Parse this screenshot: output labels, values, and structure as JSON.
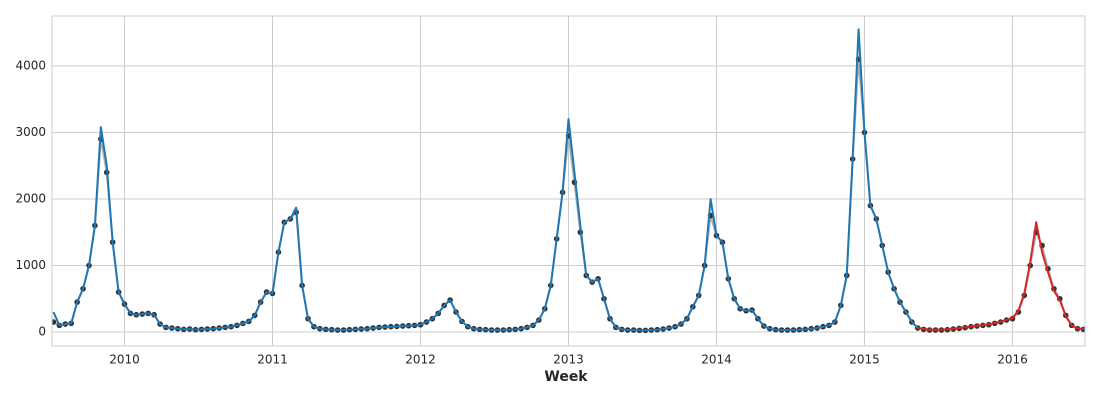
{
  "chart_data": {
    "type": "line",
    "x_label": "Week",
    "x": [
      2009.52,
      2009.56,
      2009.6,
      2009.64,
      2009.68,
      2009.72,
      2009.76,
      2009.8,
      2009.84,
      2009.88,
      2009.92,
      2009.96,
      2010.0,
      2010.04,
      2010.08,
      2010.12,
      2010.16,
      2010.2,
      2010.24,
      2010.28,
      2010.32,
      2010.36,
      2010.4,
      2010.44,
      2010.48,
      2010.52,
      2010.56,
      2010.6,
      2010.64,
      2010.68,
      2010.72,
      2010.76,
      2010.8,
      2010.84,
      2010.88,
      2010.92,
      2010.96,
      2011.0,
      2011.04,
      2011.08,
      2011.12,
      2011.16,
      2011.2,
      2011.24,
      2011.28,
      2011.32,
      2011.36,
      2011.4,
      2011.44,
      2011.48,
      2011.52,
      2011.56,
      2011.6,
      2011.64,
      2011.68,
      2011.72,
      2011.76,
      2011.8,
      2011.84,
      2011.88,
      2011.92,
      2011.96,
      2012.0,
      2012.04,
      2012.08,
      2012.12,
      2012.16,
      2012.2,
      2012.24,
      2012.28,
      2012.32,
      2012.36,
      2012.4,
      2012.44,
      2012.48,
      2012.52,
      2012.56,
      2012.6,
      2012.64,
      2012.68,
      2012.72,
      2012.76,
      2012.8,
      2012.84,
      2012.88,
      2012.92,
      2012.96,
      2013.0,
      2013.04,
      2013.08,
      2013.12,
      2013.16,
      2013.2,
      2013.24,
      2013.28,
      2013.32,
      2013.36,
      2013.4,
      2013.44,
      2013.48,
      2013.52,
      2013.56,
      2013.6,
      2013.64,
      2013.68,
      2013.72,
      2013.76,
      2013.8,
      2013.84,
      2013.88,
      2013.92,
      2013.96,
      2014.0,
      2014.04,
      2014.08,
      2014.12,
      2014.16,
      2014.2,
      2014.24,
      2014.28,
      2014.32,
      2014.36,
      2014.4,
      2014.44,
      2014.48,
      2014.52,
      2014.56,
      2014.6,
      2014.64,
      2014.68,
      2014.72,
      2014.76,
      2014.8,
      2014.84,
      2014.88,
      2014.92,
      2014.96,
      2015.0,
      2015.04,
      2015.08,
      2015.12,
      2015.16,
      2015.2,
      2015.24,
      2015.28,
      2015.32,
      2015.36,
      2015.4,
      2015.44,
      2015.48,
      2015.52,
      2015.56,
      2015.6,
      2015.64,
      2015.68,
      2015.72,
      2015.76,
      2015.8,
      2015.84,
      2015.88,
      2015.92,
      2015.96,
      2016.0,
      2016.04,
      2016.08,
      2016.12,
      2016.16,
      2016.2,
      2016.24,
      2016.28,
      2016.32,
      2016.36,
      2016.4,
      2016.44,
      2016.48
    ],
    "series": [
      {
        "color": "#333333",
        "line_color": "#b0b0b0",
        "markers": true,
        "values": [
          150,
          100,
          120,
          130,
          450,
          650,
          1000,
          1600,
          2900,
          2400,
          1350,
          600,
          420,
          280,
          260,
          270,
          280,
          260,
          120,
          70,
          60,
          50,
          40,
          45,
          35,
          40,
          45,
          50,
          60,
          70,
          80,
          100,
          130,
          160,
          250,
          450,
          600,
          580,
          1200,
          1650,
          1700,
          1800,
          700,
          200,
          80,
          50,
          40,
          35,
          30,
          30,
          35,
          40,
          45,
          50,
          60,
          70,
          75,
          80,
          85,
          90,
          95,
          100,
          110,
          150,
          200,
          280,
          400,
          480,
          300,
          160,
          80,
          50,
          40,
          35,
          30,
          30,
          30,
          35,
          40,
          50,
          70,
          100,
          180,
          350,
          700,
          1400,
          2100,
          2950,
          2250,
          1500,
          850,
          750,
          800,
          500,
          200,
          70,
          40,
          30,
          30,
          25,
          25,
          30,
          35,
          45,
          60,
          80,
          120,
          200,
          380,
          550,
          1000,
          1750,
          1450,
          1350,
          800,
          500,
          350,
          320,
          330,
          200,
          90,
          50,
          35,
          30,
          30,
          30,
          35,
          40,
          50,
          60,
          80,
          100,
          150,
          400,
          850,
          2600,
          4100,
          3000,
          1900,
          1700,
          1300,
          900,
          650,
          450,
          300,
          150,
          60,
          40,
          30,
          30,
          30,
          35,
          45,
          55,
          65,
          80,
          90,
          100,
          110,
          130,
          150,
          180,
          200,
          300,
          550,
          1000,
          1500,
          1300,
          950,
          650,
          500,
          250,
          100,
          50,
          40
        ]
      },
      {
        "color": "#1f77b4",
        "markers": false,
        "values": [
          300,
          100,
          120,
          130,
          450,
          650,
          1000,
          1600,
          3080,
          2500,
          1350,
          600,
          420,
          280,
          260,
          270,
          280,
          260,
          120,
          70,
          60,
          50,
          40,
          45,
          35,
          40,
          45,
          50,
          60,
          70,
          80,
          100,
          130,
          160,
          250,
          450,
          600,
          580,
          1200,
          1650,
          1700,
          1870,
          700,
          200,
          80,
          50,
          40,
          35,
          30,
          30,
          35,
          40,
          45,
          50,
          60,
          70,
          75,
          80,
          85,
          90,
          95,
          100,
          110,
          150,
          200,
          280,
          400,
          480,
          300,
          160,
          80,
          50,
          40,
          35,
          30,
          30,
          30,
          35,
          40,
          50,
          70,
          100,
          180,
          350,
          700,
          1400,
          2100,
          3200,
          2400,
          1600,
          850,
          750,
          800,
          500,
          200,
          70,
          40,
          30,
          30,
          25,
          25,
          30,
          35,
          45,
          60,
          80,
          120,
          200,
          380,
          550,
          1000,
          2000,
          1450,
          1350,
          800,
          500,
          350,
          320,
          330,
          200,
          90,
          50,
          35,
          30,
          30,
          30,
          35,
          40,
          50,
          60,
          80,
          100,
          150,
          400,
          850,
          2600,
          4550,
          3000,
          1900,
          1700,
          1300,
          900,
          650,
          450,
          300,
          150,
          60,
          null,
          null,
          null,
          null,
          null,
          null,
          null,
          null,
          null,
          null,
          null,
          null,
          null,
          null,
          null,
          null,
          null,
          null,
          null,
          null,
          null,
          null,
          null,
          null,
          null,
          null,
          null,
          null
        ]
      },
      {
        "color": "#d62728",
        "markers": false,
        "values": [
          null,
          null,
          null,
          null,
          null,
          null,
          null,
          null,
          null,
          null,
          null,
          null,
          null,
          null,
          null,
          null,
          null,
          null,
          null,
          null,
          null,
          null,
          null,
          null,
          null,
          null,
          null,
          null,
          null,
          null,
          null,
          null,
          null,
          null,
          null,
          null,
          null,
          null,
          null,
          null,
          null,
          null,
          null,
          null,
          null,
          null,
          null,
          null,
          null,
          null,
          null,
          null,
          null,
          null,
          null,
          null,
          null,
          null,
          null,
          null,
          null,
          null,
          null,
          null,
          null,
          null,
          null,
          null,
          null,
          null,
          null,
          null,
          null,
          null,
          null,
          null,
          null,
          null,
          null,
          null,
          null,
          null,
          null,
          null,
          null,
          null,
          null,
          null,
          null,
          null,
          null,
          null,
          null,
          null,
          null,
          null,
          null,
          null,
          null,
          null,
          null,
          null,
          null,
          null,
          null,
          null,
          null,
          null,
          null,
          null,
          null,
          null,
          null,
          null,
          null,
          null,
          null,
          null,
          null,
          null,
          null,
          null,
          null,
          null,
          null,
          null,
          null,
          null,
          null,
          null,
          null,
          null,
          null,
          null,
          null,
          null,
          null,
          null,
          null,
          null,
          null,
          null,
          null,
          null,
          null,
          null,
          60,
          45,
          35,
          35,
          35,
          40,
          50,
          60,
          70,
          85,
          95,
          105,
          115,
          135,
          155,
          185,
          210,
          320,
          580,
          1050,
          1650,
          1200,
          900,
          620,
          480,
          240,
          100,
          55,
          45
        ]
      }
    ],
    "xlim": [
      2009.51,
      2016.49
    ],
    "ylim": [
      -210,
      4750
    ],
    "xticks": [
      2010,
      2011,
      2012,
      2013,
      2014,
      2015,
      2016
    ],
    "yticks": [
      0,
      1000,
      2000,
      3000,
      4000
    ],
    "grid": true
  }
}
